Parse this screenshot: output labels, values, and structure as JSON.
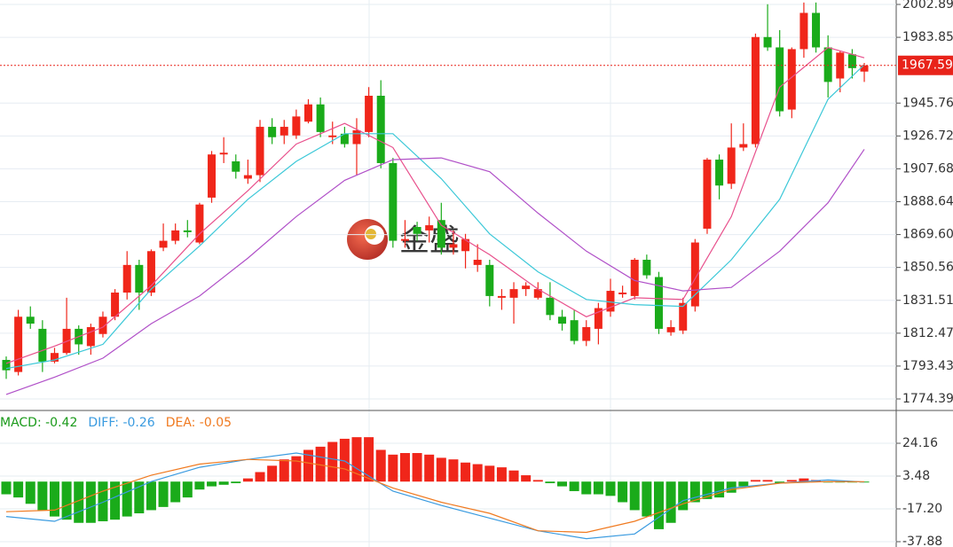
{
  "chart_data": [
    {
      "type": "candlestick",
      "up_color": "#f0261a",
      "down_color": "#1aab1a",
      "open": [
        1797,
        1790,
        1822,
        1815,
        1796,
        1801,
        1815,
        1805,
        1812,
        1822,
        1836,
        1852,
        1836,
        1862,
        1866,
        1872,
        1865,
        1891,
        1916,
        1912,
        1902,
        1904,
        1932,
        1927,
        1927,
        1935,
        1945,
        1926,
        1928,
        1922,
        1929,
        1950,
        1911,
        1866,
        1874,
        1872,
        1878,
        1862,
        1860,
        1852,
        1852,
        1833,
        1833,
        1838,
        1833,
        1833,
        1822,
        1820,
        1808,
        1815,
        1825,
        1835,
        1834,
        1855,
        1845,
        1813,
        1814,
        1828,
        1873,
        1913,
        1899,
        1920,
        1922,
        1984,
        1978,
        1942,
        1977,
        1998,
        1978,
        1960,
        1974,
        1964
      ],
      "high": [
        1799,
        1826,
        1828,
        1820,
        1804,
        1833,
        1817,
        1818,
        1825,
        1838,
        1860,
        1855,
        1861,
        1876,
        1876,
        1878,
        1888,
        1918,
        1926,
        1916,
        1913,
        1936,
        1937,
        1936,
        1942,
        1948,
        1949,
        1935,
        1932,
        1937,
        1955,
        1959,
        1914,
        1878,
        1877,
        1880,
        1888,
        1872,
        1870,
        1864,
        1855,
        1838,
        1842,
        1842,
        1842,
        1842,
        1826,
        1826,
        1820,
        1830,
        1844,
        1840,
        1856,
        1858,
        1848,
        1820,
        1833,
        1867,
        1914,
        1916,
        1934,
        1934,
        1986,
        2003,
        1988,
        1978,
        2004,
        2004,
        1985,
        1976,
        1977,
        1969
      ],
      "low": [
        1786,
        1788,
        1815,
        1790,
        1795,
        1800,
        1800,
        1800,
        1810,
        1820,
        1832,
        1826,
        1834,
        1860,
        1864,
        1868,
        1864,
        1888,
        1911,
        1902,
        1899,
        1900,
        1922,
        1922,
        1925,
        1934,
        1926,
        1922,
        1920,
        1904,
        1926,
        1908,
        1862,
        1862,
        1866,
        1865,
        1858,
        1858,
        1850,
        1848,
        1828,
        1826,
        1818,
        1834,
        1832,
        1820,
        1814,
        1806,
        1805,
        1806,
        1822,
        1833,
        1832,
        1844,
        1812,
        1811,
        1812,
        1825,
        1870,
        1890,
        1896,
        1918,
        1920,
        1976,
        1938,
        1937,
        1972,
        1975,
        1949,
        1952,
        1960,
        1958
      ],
      "close": [
        1791,
        1822,
        1818,
        1796,
        1801,
        1815,
        1806,
        1816,
        1822,
        1836,
        1852,
        1836,
        1860,
        1866,
        1872,
        1871,
        1887,
        1916,
        1917,
        1906,
        1904,
        1932,
        1926,
        1932,
        1938,
        1945,
        1929,
        1927,
        1922,
        1930,
        1950,
        1911,
        1866,
        1867,
        1870,
        1875,
        1862,
        1864,
        1867,
        1855,
        1834,
        1834,
        1838,
        1840,
        1838,
        1823,
        1818,
        1808,
        1816,
        1827,
        1837,
        1836,
        1855,
        1846,
        1815,
        1816,
        1830,
        1865,
        1913,
        1898,
        1920,
        1922,
        1984,
        1978,
        1941,
        1977,
        1998,
        1978,
        1958,
        1975,
        1966,
        1967.59
      ],
      "lines": [
        {
          "color": "#e8508c",
          "x": [
            0,
            4,
            8,
            12,
            16,
            20,
            24,
            28,
            32,
            36,
            40,
            44,
            48,
            52,
            56,
            60,
            64,
            68,
            71
          ],
          "values": [
            1795,
            1805,
            1816,
            1840,
            1870,
            1895,
            1922,
            1934,
            1920,
            1875,
            1858,
            1838,
            1822,
            1833,
            1832,
            1880,
            1955,
            1978,
            1972
          ]
        },
        {
          "color": "#3cc8d8",
          "x": [
            0,
            4,
            8,
            12,
            16,
            20,
            24,
            28,
            32,
            36,
            40,
            44,
            48,
            52,
            56,
            60,
            64,
            68,
            71
          ],
          "values": [
            1792,
            1797,
            1806,
            1838,
            1863,
            1890,
            1912,
            1928,
            1928,
            1902,
            1870,
            1848,
            1832,
            1829,
            1828,
            1855,
            1890,
            1948,
            1968
          ]
        },
        {
          "color": "#b050c8",
          "x": [
            0,
            4,
            8,
            12,
            16,
            20,
            24,
            28,
            32,
            36,
            40,
            44,
            48,
            52,
            56,
            60,
            64,
            68,
            71
          ],
          "values": [
            1777,
            1787,
            1798,
            1818,
            1834,
            1856,
            1880,
            1901,
            1913,
            1914,
            1906,
            1882,
            1860,
            1843,
            1837,
            1839,
            1860,
            1888,
            1919
          ]
        }
      ],
      "last_price": {
        "value": 1967.59,
        "label": "1967.59"
      },
      "last_price_color": "#e8231a",
      "watermark": "金盛",
      "ylim": [
        1767.71,
        2005.46
      ],
      "yticks": [
        2002.89,
        1983.85,
        1945.76,
        1926.72,
        1907.68,
        1888.64,
        {
          "value": 1869.6,
          "label": "1869.60"
        },
        1850.56,
        1831.51,
        1812.47,
        1793.43,
        1774.39
      ],
      "grid": true
    },
    {
      "type": "macd",
      "legend": [
        {
          "text": "MACD: -0.42",
          "color": "#1a9a1a"
        },
        {
          "text": "DIFF: -0.26",
          "color": "#3a9be0"
        },
        {
          "text": "DEA: -0.05",
          "color": "#f07a20"
        }
      ],
      "up_color": "#f0261a",
      "down_color": "#1aab1a",
      "values": [
        -8,
        -10,
        -14,
        -18,
        -22,
        -24,
        -26,
        -26,
        -25,
        -24,
        -22,
        -20,
        -18,
        -16,
        -13,
        -10,
        -5,
        -3,
        -2,
        -1,
        2,
        6,
        10,
        14,
        16,
        20,
        22,
        25,
        27,
        28,
        28,
        20,
        17,
        18,
        18,
        17,
        15,
        14,
        12,
        11,
        10,
        9,
        7,
        4,
        1,
        -1,
        -3,
        -6,
        -8,
        -8,
        -9,
        -13,
        -18,
        -22,
        -30,
        -26,
        -18,
        -13,
        -11,
        -10,
        -7,
        -3,
        1,
        1,
        -1,
        1,
        2,
        1,
        -0.5,
        -0.3,
        -0.3,
        -0.42
      ],
      "lines": [
        {
          "color": "#3a9be0",
          "x": [
            0,
            4,
            8,
            12,
            16,
            20,
            24,
            28,
            32,
            36,
            40,
            44,
            48,
            52,
            56,
            60,
            64,
            68,
            71
          ],
          "values": [
            -22,
            -25,
            -13,
            0,
            9,
            14,
            18,
            13,
            -6,
            -15,
            -23,
            -31,
            -36,
            -33,
            -12,
            -4,
            -1,
            1,
            -0.26
          ]
        },
        {
          "color": "#f07a20",
          "x": [
            0,
            4,
            8,
            12,
            16,
            20,
            24,
            28,
            32,
            36,
            40,
            44,
            48,
            52,
            56,
            60,
            64,
            68,
            71
          ],
          "values": [
            -19,
            -18,
            -6,
            4,
            11,
            14,
            13,
            8,
            -4,
            -13,
            -20,
            -31,
            -32,
            -25,
            -14,
            -5,
            -1,
            0,
            -0.05
          ]
        }
      ],
      "ylim": [
        -41.23,
        44.84
      ],
      "yticks": [
        24.16,
        3.48,
        {
          "value": -17.2,
          "label": "-17.20"
        },
        -37.88
      ],
      "grid": true
    }
  ]
}
